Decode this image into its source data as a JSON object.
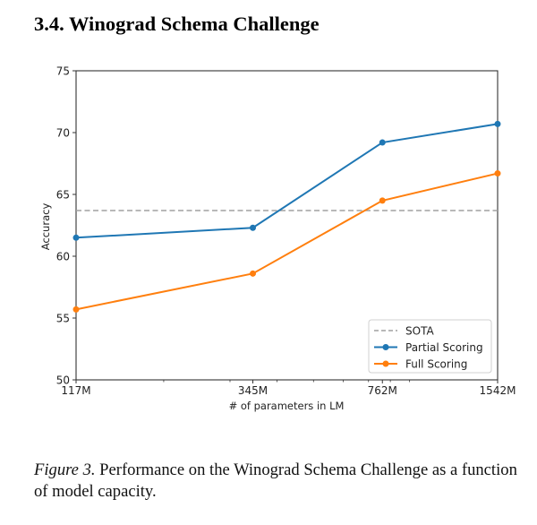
{
  "section": {
    "title": "3.4. Winograd Schema Challenge"
  },
  "caption": {
    "label": "Figure 3.",
    "text": " Performance on the Winograd Schema Challenge as a function of model capacity."
  },
  "colors": {
    "partial": "#1f77b4",
    "full": "#ff7f0e",
    "sota": "#a0a0a0",
    "axis": "#333333"
  },
  "chart_data": {
    "type": "line",
    "title": "",
    "xlabel": "# of parameters in LM",
    "ylabel": "Accuracy",
    "xscale": "log",
    "categories": [
      "117M",
      "345M",
      "762M",
      "1542M"
    ],
    "x": [
      117,
      345,
      762,
      1542
    ],
    "xlim": [
      117,
      1542
    ],
    "ylim": [
      50,
      75
    ],
    "yticks": [
      50,
      55,
      60,
      65,
      70,
      75
    ],
    "xticks": [
      "117M",
      "345M",
      "762M",
      "1542M"
    ],
    "grid": false,
    "legend_position": "lower right",
    "series": [
      {
        "name": "SOTA",
        "style": "dashed",
        "values": [
          63.7,
          63.7,
          63.7,
          63.7
        ]
      },
      {
        "name": "Partial Scoring",
        "style": "solid-marker",
        "values": [
          61.5,
          62.3,
          69.2,
          70.7
        ]
      },
      {
        "name": "Full Scoring",
        "style": "solid-marker",
        "values": [
          55.7,
          58.6,
          64.5,
          66.7
        ]
      }
    ]
  }
}
